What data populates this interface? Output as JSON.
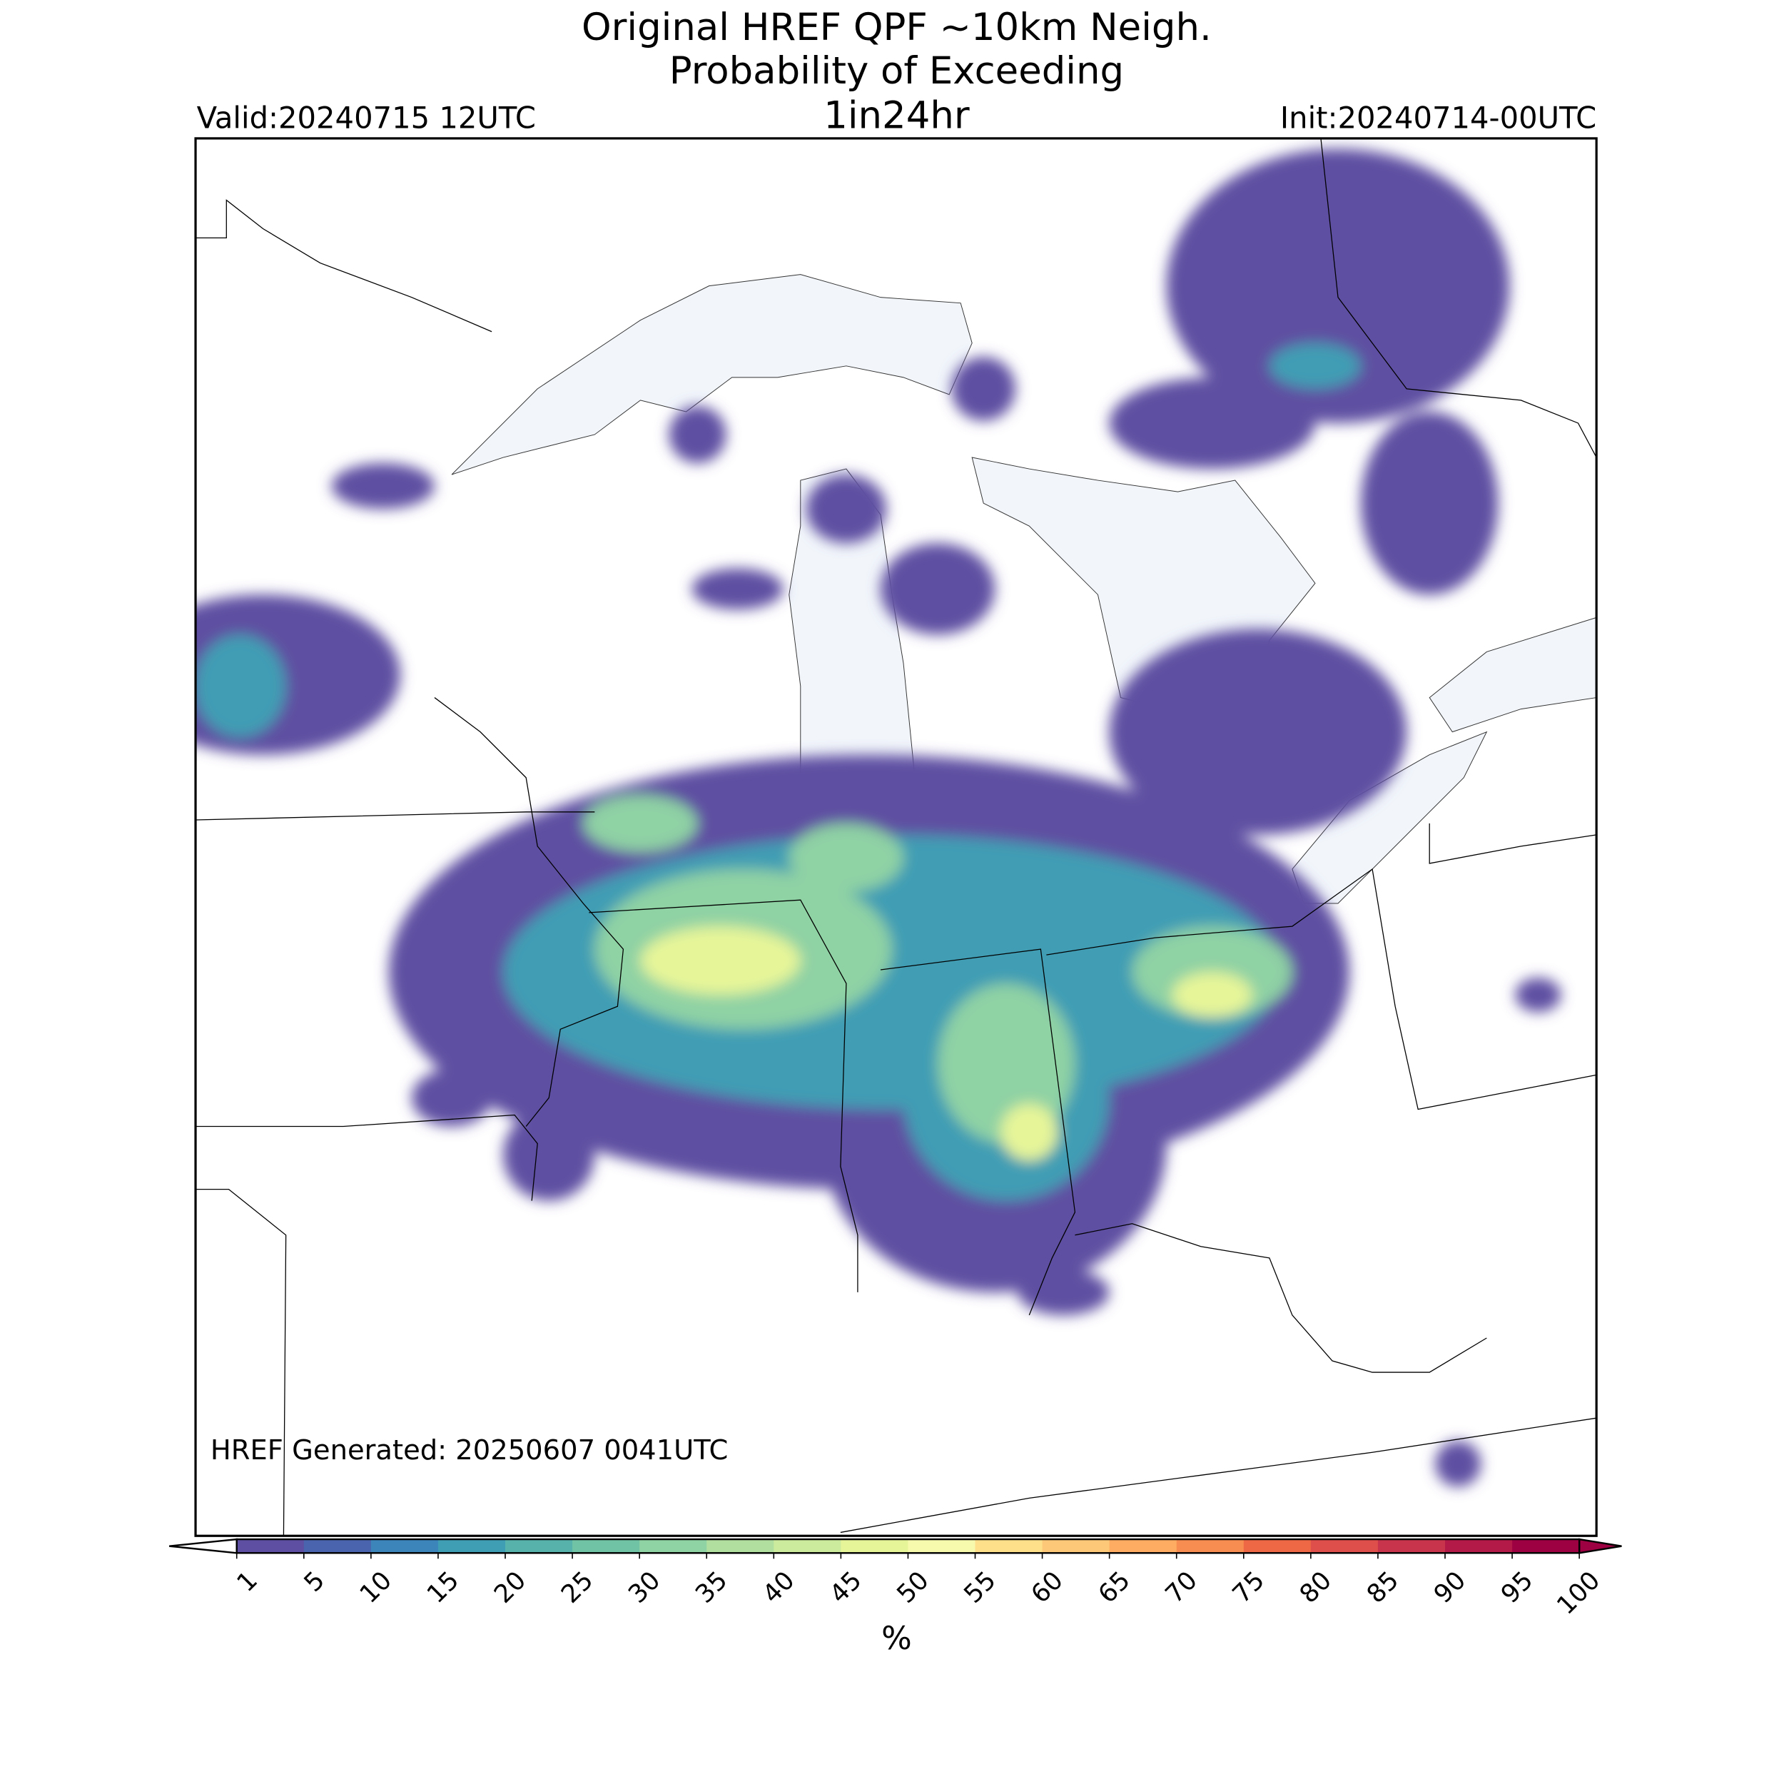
{
  "header": {
    "title_lines": [
      "Original HREF QPF ~10km Neigh.",
      "Probability of Exceeding",
      "1in24hr"
    ],
    "valid": "Valid:20240715 12UTC",
    "init": "Init:20240714-00UTC"
  },
  "footer": {
    "generated": "HREF Generated: 20250607 0041UTC"
  },
  "colorbar": {
    "label": "%",
    "ticks": [
      1,
      5,
      10,
      15,
      20,
      25,
      30,
      35,
      40,
      45,
      50,
      55,
      60,
      65,
      70,
      75,
      80,
      85,
      90,
      95,
      100
    ],
    "colors": [
      "#5e4fa2",
      "#4a65ad",
      "#3b85bb",
      "#3f9db4",
      "#57b2ac",
      "#70c4a5",
      "#8fd2a4",
      "#b0df9f",
      "#cdeb9d",
      "#e6f598",
      "#f7f9ad",
      "#fee08b",
      "#fdc877",
      "#fdac62",
      "#f88d51",
      "#ef6845",
      "#de4e4b",
      "#c9344d",
      "#b41a47",
      "#9e0142"
    ],
    "under_color": "#ffffff",
    "over_color": "#9e0142"
  }
}
